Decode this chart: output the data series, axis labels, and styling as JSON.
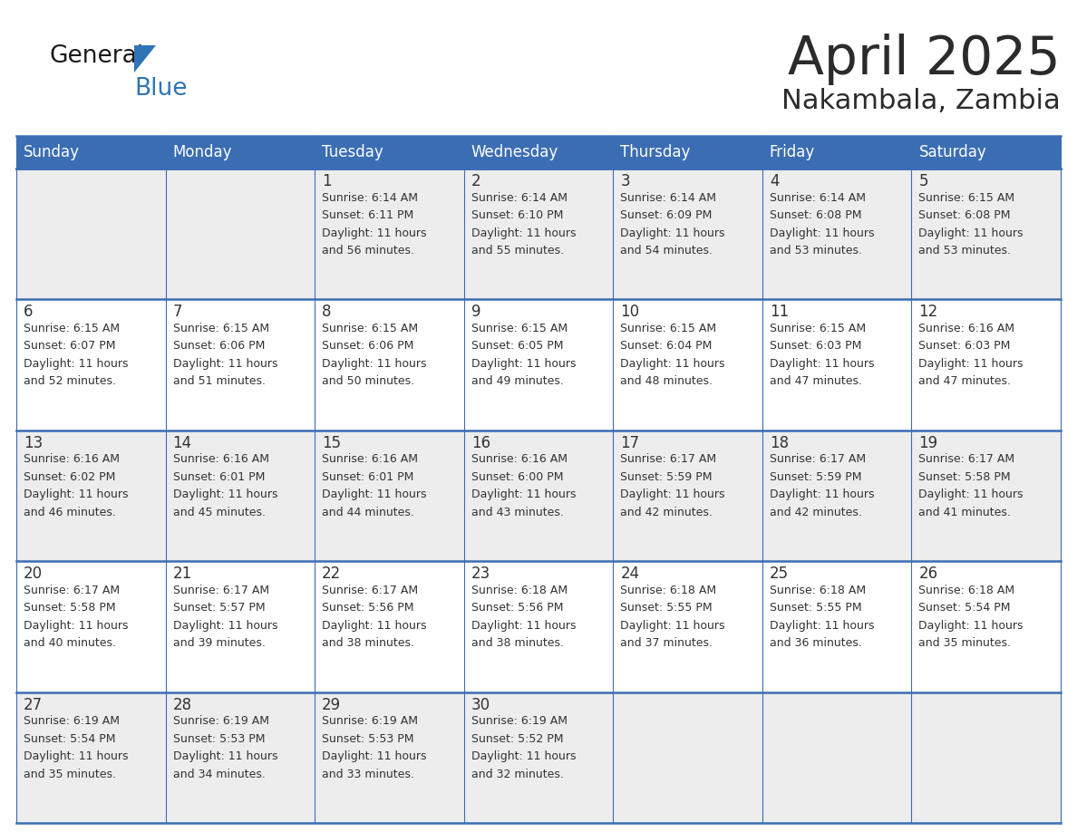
{
  "title": "April 2025",
  "subtitle": "Nakambala, Zambia",
  "header_bg_color": "#3B6DB3",
  "header_text_color": "#FFFFFF",
  "header_days": [
    "Sunday",
    "Monday",
    "Tuesday",
    "Wednesday",
    "Thursday",
    "Friday",
    "Saturday"
  ],
  "cell_bg_white": "#FFFFFF",
  "cell_bg_gray": "#EDEDED",
  "grid_color": "#3B6DB3",
  "text_color": "#333333",
  "day_num_color": "#333333",
  "title_color": "#2B2B2B",
  "subtitle_color": "#2B2B2B",
  "logo_general_color": "#1A1A1A",
  "logo_blue_color": "#2E75B6",
  "logo_triangle_color": "#2E75B6",
  "weeks": [
    [
      {
        "date": null,
        "sunrise": null,
        "sunset": null,
        "daylight": null
      },
      {
        "date": null,
        "sunrise": null,
        "sunset": null,
        "daylight": null
      },
      {
        "date": "1",
        "sunrise": "6:14 AM",
        "sunset": "6:11 PM",
        "daylight": "11 hours and 56 minutes."
      },
      {
        "date": "2",
        "sunrise": "6:14 AM",
        "sunset": "6:10 PM",
        "daylight": "11 hours and 55 minutes."
      },
      {
        "date": "3",
        "sunrise": "6:14 AM",
        "sunset": "6:09 PM",
        "daylight": "11 hours and 54 minutes."
      },
      {
        "date": "4",
        "sunrise": "6:14 AM",
        "sunset": "6:08 PM",
        "daylight": "11 hours and 53 minutes."
      },
      {
        "date": "5",
        "sunrise": "6:15 AM",
        "sunset": "6:08 PM",
        "daylight": "11 hours and 53 minutes."
      }
    ],
    [
      {
        "date": "6",
        "sunrise": "6:15 AM",
        "sunset": "6:07 PM",
        "daylight": "11 hours and 52 minutes."
      },
      {
        "date": "7",
        "sunrise": "6:15 AM",
        "sunset": "6:06 PM",
        "daylight": "11 hours and 51 minutes."
      },
      {
        "date": "8",
        "sunrise": "6:15 AM",
        "sunset": "6:06 PM",
        "daylight": "11 hours and 50 minutes."
      },
      {
        "date": "9",
        "sunrise": "6:15 AM",
        "sunset": "6:05 PM",
        "daylight": "11 hours and 49 minutes."
      },
      {
        "date": "10",
        "sunrise": "6:15 AM",
        "sunset": "6:04 PM",
        "daylight": "11 hours and 48 minutes."
      },
      {
        "date": "11",
        "sunrise": "6:15 AM",
        "sunset": "6:03 PM",
        "daylight": "11 hours and 47 minutes."
      },
      {
        "date": "12",
        "sunrise": "6:16 AM",
        "sunset": "6:03 PM",
        "daylight": "11 hours and 47 minutes."
      }
    ],
    [
      {
        "date": "13",
        "sunrise": "6:16 AM",
        "sunset": "6:02 PM",
        "daylight": "11 hours and 46 minutes."
      },
      {
        "date": "14",
        "sunrise": "6:16 AM",
        "sunset": "6:01 PM",
        "daylight": "11 hours and 45 minutes."
      },
      {
        "date": "15",
        "sunrise": "6:16 AM",
        "sunset": "6:01 PM",
        "daylight": "11 hours and 44 minutes."
      },
      {
        "date": "16",
        "sunrise": "6:16 AM",
        "sunset": "6:00 PM",
        "daylight": "11 hours and 43 minutes."
      },
      {
        "date": "17",
        "sunrise": "6:17 AM",
        "sunset": "5:59 PM",
        "daylight": "11 hours and 42 minutes."
      },
      {
        "date": "18",
        "sunrise": "6:17 AM",
        "sunset": "5:59 PM",
        "daylight": "11 hours and 42 minutes."
      },
      {
        "date": "19",
        "sunrise": "6:17 AM",
        "sunset": "5:58 PM",
        "daylight": "11 hours and 41 minutes."
      }
    ],
    [
      {
        "date": "20",
        "sunrise": "6:17 AM",
        "sunset": "5:58 PM",
        "daylight": "11 hours and 40 minutes."
      },
      {
        "date": "21",
        "sunrise": "6:17 AM",
        "sunset": "5:57 PM",
        "daylight": "11 hours and 39 minutes."
      },
      {
        "date": "22",
        "sunrise": "6:17 AM",
        "sunset": "5:56 PM",
        "daylight": "11 hours and 38 minutes."
      },
      {
        "date": "23",
        "sunrise": "6:18 AM",
        "sunset": "5:56 PM",
        "daylight": "11 hours and 38 minutes."
      },
      {
        "date": "24",
        "sunrise": "6:18 AM",
        "sunset": "5:55 PM",
        "daylight": "11 hours and 37 minutes."
      },
      {
        "date": "25",
        "sunrise": "6:18 AM",
        "sunset": "5:55 PM",
        "daylight": "11 hours and 36 minutes."
      },
      {
        "date": "26",
        "sunrise": "6:18 AM",
        "sunset": "5:54 PM",
        "daylight": "11 hours and 35 minutes."
      }
    ],
    [
      {
        "date": "27",
        "sunrise": "6:19 AM",
        "sunset": "5:54 PM",
        "daylight": "11 hours and 35 minutes."
      },
      {
        "date": "28",
        "sunrise": "6:19 AM",
        "sunset": "5:53 PM",
        "daylight": "11 hours and 34 minutes."
      },
      {
        "date": "29",
        "sunrise": "6:19 AM",
        "sunset": "5:53 PM",
        "daylight": "11 hours and 33 minutes."
      },
      {
        "date": "30",
        "sunrise": "6:19 AM",
        "sunset": "5:52 PM",
        "daylight": "11 hours and 32 minutes."
      },
      {
        "date": null,
        "sunrise": null,
        "sunset": null,
        "daylight": null
      },
      {
        "date": null,
        "sunrise": null,
        "sunset": null,
        "daylight": null
      },
      {
        "date": null,
        "sunrise": null,
        "sunset": null,
        "daylight": null
      }
    ]
  ]
}
